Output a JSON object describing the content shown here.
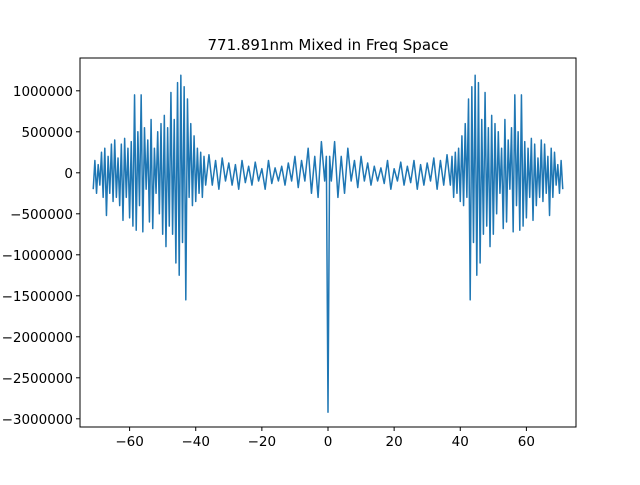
{
  "chart_data": {
    "type": "line",
    "title": "771.891nm Mixed in Freq Space",
    "xlabel": "",
    "ylabel": "",
    "xlim": [
      -75,
      75
    ],
    "ylim": [
      -3100000,
      1400000
    ],
    "xticks": [
      -60,
      -40,
      -20,
      0,
      20,
      40,
      60
    ],
    "xtick_labels": [
      "−60",
      "−40",
      "−20",
      "0",
      "20",
      "40",
      "60"
    ],
    "yticks": [
      1000000,
      500000,
      0,
      -500000,
      -1000000,
      -1500000,
      -2000000,
      -2500000,
      -3000000
    ],
    "ytick_labels": [
      "1000000",
      "500000",
      "0",
      "−500000",
      "−1000000",
      "−1500000",
      "−2000000",
      "−2500000",
      "−3000000"
    ],
    "grid": false,
    "legend": "none",
    "series": [
      {
        "color": "#1f77b4",
        "x": [
          -71,
          -70.5,
          -70,
          -69.5,
          -69,
          -68.5,
          -68,
          -67.5,
          -67,
          -66.5,
          -66,
          -65.5,
          -65,
          -64.5,
          -64,
          -63.5,
          -63,
          -62.5,
          -62,
          -61.5,
          -61,
          -60.5,
          -60,
          -59.5,
          -59,
          -58.5,
          -58,
          -57.5,
          -57,
          -56.5,
          -56,
          -55.5,
          -55,
          -54.5,
          -54,
          -53.5,
          -53,
          -52.5,
          -52,
          -51.5,
          -51,
          -50.5,
          -50,
          -49.5,
          -49,
          -48.5,
          -48,
          -47.5,
          -47,
          -46.5,
          -46,
          -45.5,
          -45,
          -44.5,
          -44,
          -43.5,
          -43,
          -42.5,
          -42,
          -41.5,
          -41,
          -40.5,
          -40,
          -39.5,
          -39,
          -38.5,
          -38,
          -37.5,
          -37,
          -36,
          -35,
          -34,
          -33,
          -32,
          -31,
          -30,
          -29,
          -28,
          -27,
          -26,
          -25,
          -24,
          -23,
          -22,
          -21,
          -20,
          -19,
          -18,
          -17,
          -16,
          -15,
          -14,
          -13,
          -12,
          -11,
          -10,
          -9,
          -8,
          -7,
          -6,
          -5,
          -4,
          -3,
          -2,
          -1,
          -0.5,
          0,
          0.5,
          1,
          2,
          3,
          4,
          5,
          6,
          7,
          8,
          9,
          10,
          11,
          12,
          13,
          14,
          15,
          16,
          17,
          18,
          19,
          20,
          21,
          22,
          23,
          24,
          25,
          26,
          27,
          28,
          29,
          30,
          31,
          32,
          33,
          34,
          35,
          36,
          37,
          37.5,
          38,
          38.5,
          39,
          39.5,
          40,
          40.5,
          41,
          41.5,
          42,
          42.5,
          43,
          43.5,
          44,
          44.5,
          45,
          45.5,
          46,
          46.5,
          47,
          47.5,
          48,
          48.5,
          49,
          49.5,
          50,
          50.5,
          51,
          51.5,
          52,
          52.5,
          53,
          53.5,
          54,
          54.5,
          55,
          55.5,
          56,
          56.5,
          57,
          57.5,
          58,
          58.5,
          59,
          59.5,
          60,
          60.5,
          61,
          61.5,
          62,
          62.5,
          63,
          63.5,
          64,
          64.5,
          65,
          65.5,
          66,
          66.5,
          67,
          67.5,
          68,
          68.5,
          69,
          69.5,
          70,
          70.5,
          71
        ],
        "y": [
          -200000,
          150000,
          -250000,
          100000,
          -150000,
          250000,
          -300000,
          300000,
          -520000,
          200000,
          -250000,
          350000,
          -350000,
          400000,
          -300000,
          180000,
          -400000,
          350000,
          -580000,
          420000,
          -300000,
          300000,
          -550000,
          380000,
          -650000,
          950000,
          -700000,
          500000,
          -400000,
          950000,
          -720000,
          550000,
          -200000,
          400000,
          -600000,
          650000,
          -680000,
          300000,
          -250000,
          500000,
          -500000,
          600000,
          -750000,
          700000,
          -900000,
          550000,
          -650000,
          980000,
          -750000,
          650000,
          -1100000,
          1100000,
          -1250000,
          1190000,
          -850000,
          1050000,
          -1550000,
          900000,
          -300000,
          600000,
          -400000,
          450000,
          -350000,
          300000,
          -250000,
          250000,
          -300000,
          200000,
          -150000,
          220000,
          -150000,
          150000,
          -200000,
          180000,
          -100000,
          120000,
          -150000,
          100000,
          -200000,
          150000,
          -120000,
          80000,
          -150000,
          130000,
          -100000,
          50000,
          -200000,
          150000,
          -130000,
          60000,
          -100000,
          80000,
          -150000,
          120000,
          -100000,
          200000,
          -180000,
          150000,
          -100000,
          300000,
          -250000,
          200000,
          -300000,
          380000,
          -100000,
          200000,
          -2920000,
          200000,
          -100000,
          380000,
          -300000,
          200000,
          -250000,
          300000,
          -100000,
          150000,
          -180000,
          200000,
          -100000,
          120000,
          -150000,
          80000,
          -100000,
          60000,
          -130000,
          150000,
          -200000,
          50000,
          -100000,
          130000,
          -150000,
          80000,
          -120000,
          150000,
          -200000,
          100000,
          -150000,
          120000,
          -100000,
          180000,
          -200000,
          150000,
          -150000,
          220000,
          -150000,
          200000,
          -300000,
          250000,
          -250000,
          300000,
          -350000,
          450000,
          -400000,
          600000,
          -300000,
          900000,
          -1550000,
          1050000,
          -850000,
          1190000,
          -1250000,
          1100000,
          -1100000,
          650000,
          -750000,
          980000,
          -650000,
          550000,
          -900000,
          700000,
          -750000,
          600000,
          -500000,
          500000,
          -250000,
          300000,
          -680000,
          650000,
          -600000,
          400000,
          -200000,
          550000,
          -720000,
          950000,
          -400000,
          500000,
          -700000,
          950000,
          -650000,
          380000,
          -550000,
          300000,
          -300000,
          420000,
          -580000,
          350000,
          -400000,
          180000,
          -300000,
          400000,
          -350000,
          350000,
          -250000,
          200000,
          -520000,
          300000,
          -300000,
          250000,
          -150000,
          100000,
          -250000,
          150000,
          -200000
        ]
      }
    ]
  }
}
